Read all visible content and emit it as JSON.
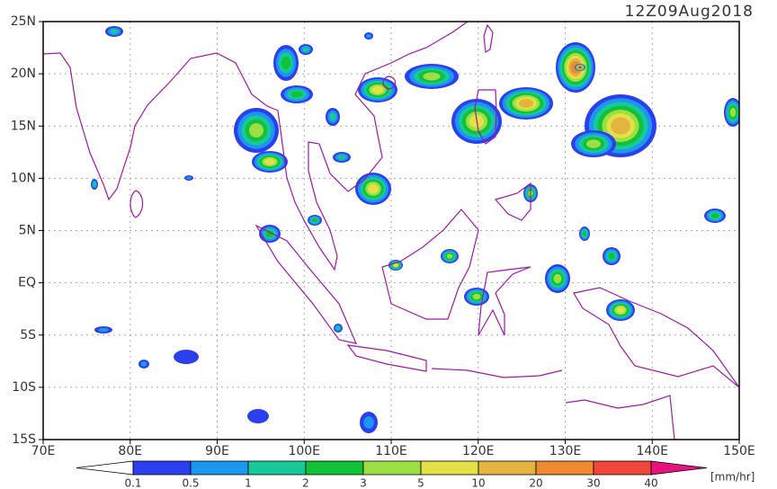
{
  "title": "12Z09Aug2018",
  "map": {
    "xlim": [
      70,
      150
    ],
    "ylim": [
      -15,
      25
    ],
    "xticks": [
      {
        "value": 70,
        "label": "70E"
      },
      {
        "value": 80,
        "label": "80E"
      },
      {
        "value": 90,
        "label": "90E"
      },
      {
        "value": 100,
        "label": "100E"
      },
      {
        "value": 110,
        "label": "110E"
      },
      {
        "value": 120,
        "label": "120E"
      },
      {
        "value": 130,
        "label": "130E"
      },
      {
        "value": 140,
        "label": "140E"
      },
      {
        "value": 150,
        "label": "150E"
      }
    ],
    "yticks": [
      {
        "value": 25,
        "label": "25N"
      },
      {
        "value": 20,
        "label": "20N"
      },
      {
        "value": 15,
        "label": "15N"
      },
      {
        "value": 10,
        "label": "10N"
      },
      {
        "value": 5,
        "label": "5N"
      },
      {
        "value": 0,
        "label": "EQ"
      },
      {
        "value": -5,
        "label": "5S"
      },
      {
        "value": -10,
        "label": "10S"
      },
      {
        "value": -15,
        "label": "15S"
      }
    ]
  },
  "colorbar": {
    "levels": [
      0.1,
      0.5,
      1,
      2,
      3,
      5,
      10,
      20,
      30,
      40
    ],
    "colors": [
      "#ffffff",
      "#2b3fee",
      "#1c97f0",
      "#17c99a",
      "#10c236",
      "#9ede45",
      "#e2e145",
      "#e3b440",
      "#f08a32",
      "#f2453c",
      "#e6137f"
    ],
    "unit": "[mm/hr]"
  }
}
